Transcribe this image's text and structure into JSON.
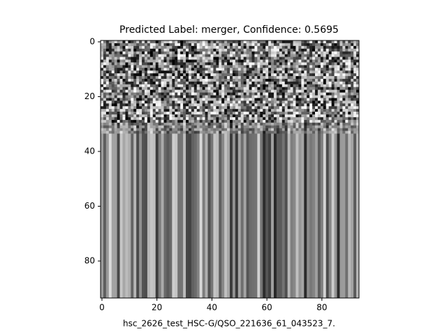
{
  "chart_data": {
    "type": "image",
    "title": "Predicted Label: merger, Confidence: 0.5695",
    "xlabel": "hsc_2626_test_HSC-G/QSO_221636_61_043523_7.",
    "xlim": [
      -0.5,
      93.5
    ],
    "ylim": [
      93.5,
      -0.5
    ],
    "xticks": [
      0,
      20,
      40,
      60,
      80
    ],
    "yticks": [
      0,
      20,
      40,
      60,
      80
    ]
  }
}
